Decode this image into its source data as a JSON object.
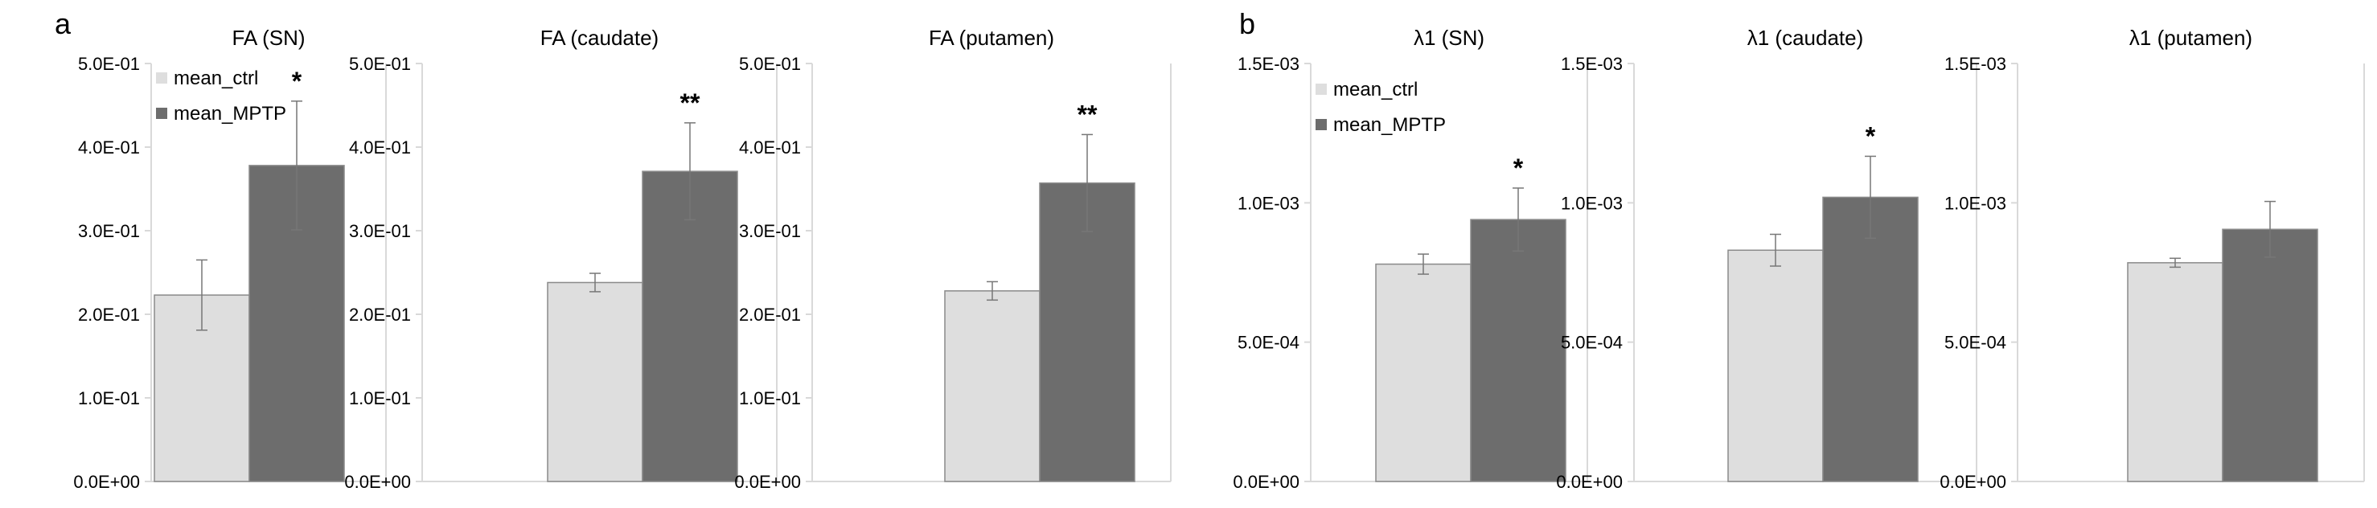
{
  "panel_labels": [
    "a",
    "b"
  ],
  "colors": {
    "ctrl": "#dedede",
    "mptp": "#6d6d6d",
    "bar_stroke": "#8a8a8a",
    "error_bar": "#777777",
    "axis": "#d9d9d9",
    "text": "#000000"
  },
  "legend": [
    "mean_ctrl",
    "mean_MPTP"
  ],
  "chart_data": [
    {
      "type": "bar",
      "panel": "a",
      "title": "FA (SN)",
      "series": [
        {
          "name": "mean_ctrl",
          "values": [
            0.223
          ],
          "errors": [
            0.042
          ]
        },
        {
          "name": "mean_MPTP",
          "values": [
            0.378
          ],
          "errors": [
            0.077
          ]
        }
      ],
      "ylim": [
        0,
        0.5
      ],
      "yticks": [
        "0.0E+00",
        "1.0E-01",
        "2.0E-01",
        "3.0E-01",
        "4.0E-01",
        "5.0E-01"
      ],
      "significance": "*",
      "legend": "top-left",
      "grid": false
    },
    {
      "type": "bar",
      "panel": "a",
      "title": "FA (caudate)",
      "series": [
        {
          "name": "mean_ctrl",
          "values": [
            0.238
          ],
          "errors": [
            0.011
          ]
        },
        {
          "name": "mean_MPTP",
          "values": [
            0.371
          ],
          "errors": [
            0.058
          ]
        }
      ],
      "ylim": [
        0,
        0.5
      ],
      "yticks": [
        "0.0E+00",
        "1.0E-01",
        "2.0E-01",
        "3.0E-01",
        "4.0E-01",
        "5.0E-01"
      ],
      "significance": "**",
      "grid": false
    },
    {
      "type": "bar",
      "panel": "a",
      "title": "FA (putamen)",
      "series": [
        {
          "name": "mean_ctrl",
          "values": [
            0.228
          ],
          "errors": [
            0.011
          ]
        },
        {
          "name": "mean_MPTP",
          "values": [
            0.357
          ],
          "errors": [
            0.058
          ]
        }
      ],
      "ylim": [
        0,
        0.5
      ],
      "yticks": [
        "0.0E+00",
        "1.0E-01",
        "2.0E-01",
        "3.0E-01",
        "4.0E-01",
        "5.0E-01"
      ],
      "significance": "**",
      "grid": false
    },
    {
      "type": "bar",
      "panel": "b",
      "title": "λ1 (SN)",
      "series": [
        {
          "name": "mean_ctrl",
          "values": [
            0.00078
          ],
          "errors": [
            3.6e-05
          ]
        },
        {
          "name": "mean_MPTP",
          "values": [
            0.00094
          ],
          "errors": [
            0.000113
          ]
        }
      ],
      "ylim": [
        0,
        0.0015
      ],
      "yticks": [
        "0.0E+00",
        "5.0E-04",
        "1.0E-03",
        "1.5E-03"
      ],
      "significance": "*",
      "legend": "top-left",
      "grid": false
    },
    {
      "type": "bar",
      "panel": "b",
      "title": "λ1 (caudate)",
      "series": [
        {
          "name": "mean_ctrl",
          "values": [
            0.00083
          ],
          "errors": [
            5.7e-05
          ]
        },
        {
          "name": "mean_MPTP",
          "values": [
            0.00102
          ],
          "errors": [
            0.000147
          ]
        }
      ],
      "ylim": [
        0,
        0.0015
      ],
      "yticks": [
        "0.0E+00",
        "5.0E-04",
        "1.0E-03",
        "1.5E-03"
      ],
      "significance": "*",
      "grid": false
    },
    {
      "type": "bar",
      "panel": "b",
      "title": "λ1 (putamen)",
      "series": [
        {
          "name": "mean_ctrl",
          "values": [
            0.000785
          ],
          "errors": [
            1.6e-05
          ]
        },
        {
          "name": "mean_MPTP",
          "values": [
            0.000905
          ],
          "errors": [
            0.0001
          ]
        }
      ],
      "ylim": [
        0,
        0.0015
      ],
      "yticks": [
        "0.0E+00",
        "5.0E-04",
        "1.0E-03",
        "1.5E-03"
      ],
      "significance": "",
      "grid": false
    }
  ]
}
